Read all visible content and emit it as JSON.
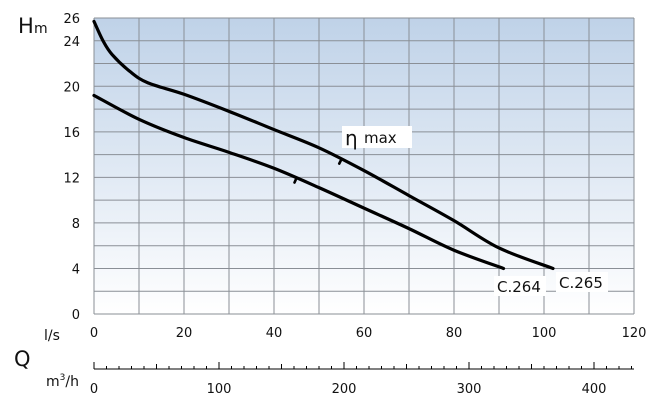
{
  "chart_data": {
    "type": "line",
    "y_axis": {
      "label_H": "H",
      "label_m": "m",
      "range": [
        0,
        26
      ],
      "ticks": [
        "0",
        "4",
        "8",
        "12",
        "16",
        "20",
        "24",
        "26"
      ]
    },
    "x_axis_ls": {
      "unit": "l/s",
      "range": [
        0,
        120
      ],
      "ticks": [
        "0",
        "20",
        "40",
        "60",
        "80",
        "100",
        "120"
      ]
    },
    "x_axis_m3h": {
      "quantity": "Q",
      "unit_prefix": "m",
      "unit_exp": "3",
      "unit_suffix": "/h",
      "range": [
        0,
        432
      ],
      "ticks": [
        "0",
        "100",
        "200",
        "300",
        "400"
      ]
    },
    "eta_label_symbol": "η",
    "eta_label_text": "max",
    "series": [
      {
        "name": "C.265",
        "points": [
          [
            0,
            25.7
          ],
          [
            2,
            24
          ],
          [
            4,
            22.8
          ],
          [
            8,
            21.3
          ],
          [
            12,
            20.3
          ],
          [
            20,
            19.3
          ],
          [
            30,
            17.8
          ],
          [
            40,
            16.2
          ],
          [
            50,
            14.6
          ],
          [
            60,
            12.6
          ],
          [
            70,
            10.4
          ],
          [
            80,
            8.2
          ],
          [
            90,
            5.8
          ],
          [
            102,
            4
          ]
        ],
        "eta_max_at": 55
      },
      {
        "name": "C.264",
        "points": [
          [
            0,
            19.2
          ],
          [
            10,
            17.1
          ],
          [
            20,
            15.5
          ],
          [
            30,
            14.2
          ],
          [
            40,
            12.8
          ],
          [
            50,
            11.1
          ],
          [
            60,
            9.3
          ],
          [
            70,
            7.5
          ],
          [
            80,
            5.6
          ],
          [
            91,
            4
          ]
        ],
        "eta_max_at": 45
      }
    ],
    "colors": {
      "background_top": "#bfd2e8",
      "background_bottom": "#ffffff",
      "grid": "#8a8f96",
      "curve": "#000000"
    }
  }
}
